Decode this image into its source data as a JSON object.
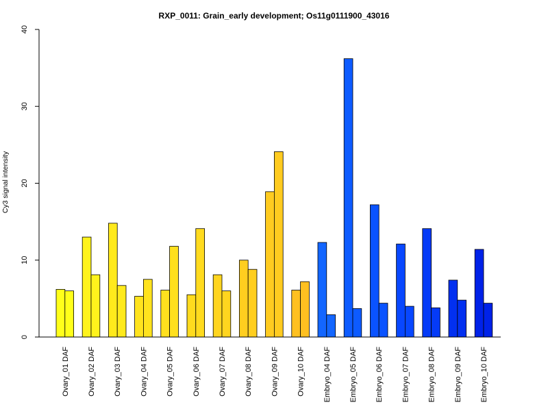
{
  "chart_data": {
    "type": "bar",
    "title": "RXP_0011: Grain_early development; Os11g0111900_43016",
    "xlabel": "",
    "ylabel": "Cy3 signal intensity",
    "ylim": [
      0,
      40
    ],
    "yticks": [
      "0",
      "10",
      "20",
      "30",
      "40"
    ],
    "categories": [
      "Ovary_01 DAF",
      "Ovary_02 DAF",
      "Ovary_03 DAF",
      "Ovary_04 DAF",
      "Ovary_05 DAF",
      "Ovary_06 DAF",
      "Ovary_07 DAF",
      "Ovary_08 DAF",
      "Ovary_09 DAF",
      "Ovary_10 DAF",
      "Embryo_04 DAF",
      "Embryo_05 DAF",
      "Embryo_06 DAF",
      "Embryo_07 DAF",
      "Embryo_08 DAF",
      "Embryo_09 DAF",
      "Embryo_10 DAF"
    ],
    "colors": [
      "#FFFF1A",
      "#FFF31C",
      "#FFEA1C",
      "#FFE31E",
      "#FFE01E",
      "#FFDB1E",
      "#FFD51F",
      "#FFCE1F",
      "#FFCB20",
      "#FFC020",
      "#1366FF",
      "#0D5BFF",
      "#0A53FF",
      "#0847FF",
      "#053BF7",
      "#0230F0",
      "#0022E8"
    ],
    "series": [
      {
        "values": [
          6.2,
          13.0,
          14.8,
          5.3,
          6.1,
          5.5,
          8.1,
          10.0,
          18.9,
          6.1,
          12.3,
          36.2,
          17.2,
          12.1,
          14.1,
          7.4,
          11.4
        ]
      },
      {
        "values": [
          6.0,
          8.1,
          6.7,
          7.5,
          11.8,
          14.1,
          6.0,
          8.8,
          24.1,
          7.2,
          2.9,
          3.7,
          4.4,
          4.0,
          3.8,
          4.8,
          4.4
        ]
      }
    ],
    "grid": false,
    "legend": "none"
  }
}
